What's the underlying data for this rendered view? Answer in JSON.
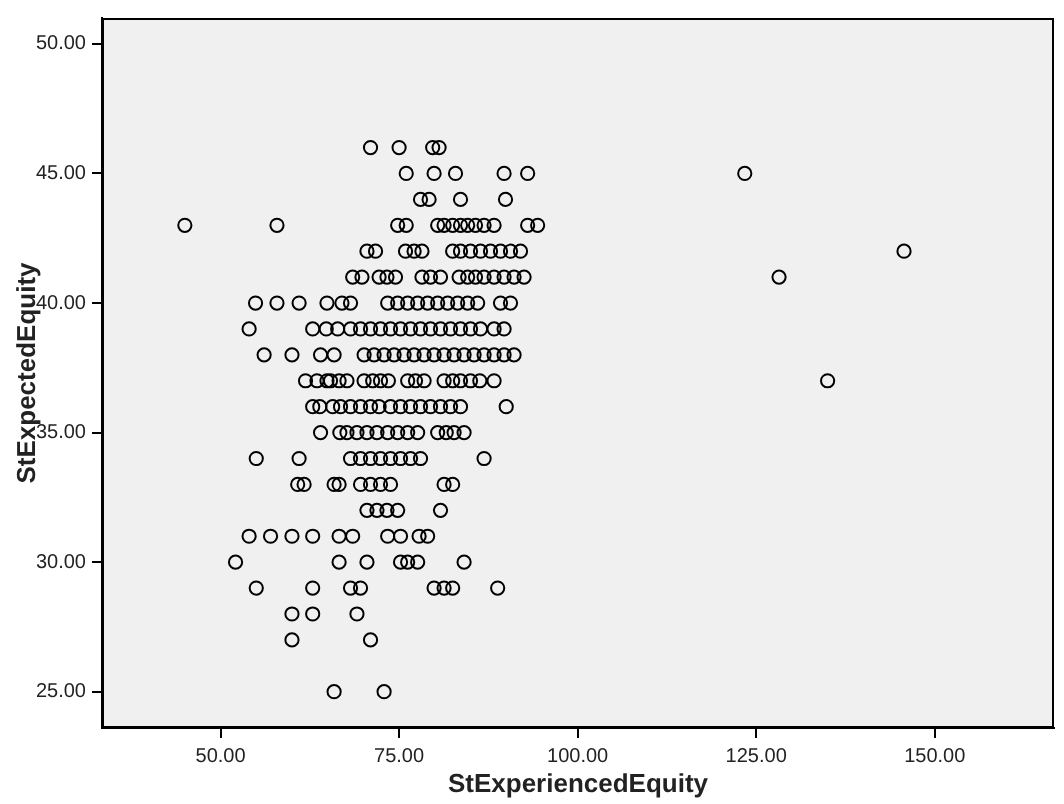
{
  "chart_data": {
    "type": "scatter",
    "xlabel": "StExperiencedEquity",
    "ylabel": "StExpectedEquity",
    "marker": "circle",
    "grid": false,
    "legend": false,
    "xlim": [
      33.4,
      166.7
    ],
    "ylim": [
      23.6,
      51.0
    ],
    "xticks": [
      {
        "value": 50,
        "label": "50.00"
      },
      {
        "value": 75,
        "label": "75.00"
      },
      {
        "value": 100,
        "label": "100.00"
      },
      {
        "value": 125,
        "label": "125.00"
      },
      {
        "value": 150,
        "label": "150.00"
      }
    ],
    "yticks": [
      {
        "value": 25,
        "label": "25.00"
      },
      {
        "value": 30,
        "label": "30.00"
      },
      {
        "value": 35,
        "label": "35.00"
      },
      {
        "value": 40,
        "label": "40.00"
      },
      {
        "value": 45,
        "label": "45.00"
      },
      {
        "value": 50,
        "label": "50.00"
      }
    ],
    "series": [
      {
        "color": "#000000",
        "x": [
          71.0,
          75.0,
          79.7,
          80.6,
          76.0,
          79.9,
          82.9,
          89.7,
          93.0,
          123.4,
          78.0,
          79.2,
          83.6,
          89.9,
          45.0,
          57.9,
          74.8,
          76.0,
          80.4,
          81.3,
          82.5,
          83.6,
          84.6,
          85.7,
          86.9,
          88.3,
          93.0,
          94.4,
          70.5,
          71.7,
          75.9,
          77.1,
          78.2,
          82.5,
          83.6,
          85.0,
          86.4,
          87.8,
          89.2,
          90.6,
          92.0,
          145.7,
          68.5,
          69.8,
          72.2,
          73.3,
          74.5,
          78.2,
          79.4,
          80.8,
          83.4,
          84.6,
          85.7,
          86.9,
          88.3,
          89.7,
          91.1,
          92.5,
          128.2,
          54.9,
          57.9,
          61.0,
          64.9,
          67.0,
          68.2,
          73.4,
          74.8,
          76.2,
          77.6,
          79.0,
          80.4,
          81.8,
          83.2,
          84.6,
          86.0,
          89.2,
          90.6,
          54.0,
          62.9,
          64.8,
          66.4,
          68.2,
          69.6,
          71.0,
          72.4,
          73.8,
          75.2,
          76.6,
          78.0,
          79.4,
          80.8,
          82.2,
          83.6,
          85.0,
          86.4,
          88.3,
          89.7,
          56.1,
          60.0,
          64.0,
          65.9,
          70.1,
          71.5,
          72.9,
          74.3,
          75.7,
          77.1,
          78.5,
          79.9,
          81.3,
          82.7,
          84.1,
          85.5,
          86.9,
          88.3,
          89.7,
          91.1,
          61.9,
          63.5,
          64.9,
          65.4,
          66.6,
          67.7,
          70.1,
          71.3,
          72.4,
          73.5,
          76.2,
          77.3,
          78.5,
          81.3,
          82.5,
          83.6,
          85.0,
          86.3,
          88.3,
          135.0,
          62.9,
          63.9,
          65.7,
          66.8,
          68.2,
          69.6,
          71.0,
          72.2,
          73.8,
          75.2,
          76.6,
          78.0,
          79.4,
          80.8,
          82.2,
          83.6,
          90.0,
          64.0,
          66.7,
          67.7,
          69.1,
          70.5,
          71.9,
          73.4,
          74.8,
          76.2,
          77.6,
          80.4,
          81.6,
          82.7,
          84.1,
          55.0,
          61.0,
          68.2,
          69.6,
          71.0,
          72.4,
          73.8,
          75.2,
          76.6,
          78.0,
          86.9,
          60.8,
          61.7,
          65.9,
          66.6,
          69.6,
          71.0,
          72.4,
          73.8,
          81.3,
          82.5,
          70.5,
          71.9,
          73.3,
          74.8,
          80.8,
          54.0,
          57.0,
          60.0,
          62.9,
          66.6,
          68.5,
          73.4,
          75.2,
          77.8,
          79.0,
          52.1,
          66.6,
          70.5,
          75.2,
          76.2,
          77.6,
          84.1,
          55.0,
          62.9,
          68.2,
          69.6,
          79.9,
          81.3,
          82.5,
          88.8,
          60.0,
          62.9,
          69.1,
          60.0,
          71.0,
          65.9,
          72.9
        ],
        "values": [
          46,
          46,
          46,
          46,
          45,
          45,
          45,
          45,
          45,
          45,
          44,
          44,
          44,
          44,
          43,
          43,
          43,
          43,
          43,
          43,
          43,
          43,
          43,
          43,
          43,
          43,
          43,
          43,
          42,
          42,
          42,
          42,
          42,
          42,
          42,
          42,
          42,
          42,
          42,
          42,
          42,
          42,
          41,
          41,
          41,
          41,
          41,
          41,
          41,
          41,
          41,
          41,
          41,
          41,
          41,
          41,
          41,
          41,
          41,
          40,
          40,
          40,
          40,
          40,
          40,
          40,
          40,
          40,
          40,
          40,
          40,
          40,
          40,
          40,
          40,
          40,
          40,
          39,
          39,
          39,
          39,
          39,
          39,
          39,
          39,
          39,
          39,
          39,
          39,
          39,
          39,
          39,
          39,
          39,
          39,
          39,
          39,
          38,
          38,
          38,
          38,
          38,
          38,
          38,
          38,
          38,
          38,
          38,
          38,
          38,
          38,
          38,
          38,
          38,
          38,
          38,
          38,
          37,
          37,
          37,
          37,
          37,
          37,
          37,
          37,
          37,
          37,
          37,
          37,
          37,
          37,
          37,
          37,
          37,
          37,
          37,
          37,
          36,
          36,
          36,
          36,
          36,
          36,
          36,
          36,
          36,
          36,
          36,
          36,
          36,
          36,
          36,
          36,
          36,
          35,
          35,
          35,
          35,
          35,
          35,
          35,
          35,
          35,
          35,
          35,
          35,
          35,
          35,
          34,
          34,
          34,
          34,
          34,
          34,
          34,
          34,
          34,
          34,
          34,
          33,
          33,
          33,
          33,
          33,
          33,
          33,
          33,
          33,
          33,
          32,
          32,
          32,
          32,
          32,
          31,
          31,
          31,
          31,
          31,
          31,
          31,
          31,
          31,
          31,
          30,
          30,
          30,
          30,
          30,
          30,
          30,
          29,
          29,
          29,
          29,
          29,
          29,
          29,
          29,
          28,
          28,
          28,
          27,
          27,
          25,
          25
        ]
      }
    ]
  }
}
